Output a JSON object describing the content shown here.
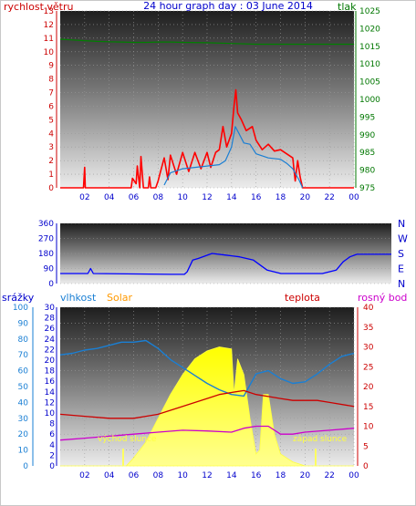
{
  "panel1": {
    "title": "24 hour graph day : 03 June 2014",
    "left_label": "rychlost větru",
    "right_label": "tlak",
    "left_ticks": [
      "0",
      "1",
      "2",
      "3",
      "4",
      "5",
      "6",
      "7",
      "8",
      "9",
      "10",
      "11",
      "12",
      "13"
    ],
    "right_ticks": [
      "975",
      "980",
      "985",
      "990",
      "995",
      "1000",
      "1005",
      "1010",
      "1015",
      "1020",
      "1025"
    ],
    "x_ticks": [
      "02",
      "04",
      "06",
      "08",
      "10",
      "12",
      "14",
      "16",
      "18",
      "20",
      "22",
      "00"
    ],
    "colors": {
      "wind": "#ff0000",
      "gust_avg": "#1a7fd4",
      "pressure": "#008000",
      "left_axis": "#cc0000",
      "right_axis": "#007700",
      "title": "#0000cc"
    }
  },
  "panel2": {
    "left_ticks": [
      "0",
      "90",
      "180",
      "270",
      "360"
    ],
    "right_letters": [
      "N",
      "W",
      "S",
      "E",
      "N"
    ],
    "colors": {
      "direction": "#0000ff",
      "axis": "#0000cc"
    }
  },
  "panel3": {
    "labels": {
      "rain": "srážky",
      "humidity": "vlhkost",
      "solar": "Solar",
      "temperature": "teplota",
      "dewpoint": "rosný bod"
    },
    "humidity_ticks": [
      "0",
      "10",
      "20",
      "30",
      "40",
      "50",
      "60",
      "70",
      "80",
      "90",
      "100"
    ],
    "rain_ticks": [
      "0",
      "2",
      "4",
      "6",
      "8",
      "10",
      "12",
      "14",
      "16",
      "18",
      "20",
      "22",
      "24",
      "26",
      "28",
      "30"
    ],
    "temp_ticks": [
      "0",
      "5",
      "10",
      "15",
      "20",
      "25",
      "30",
      "35",
      "40"
    ],
    "x_ticks": [
      "02",
      "04",
      "06",
      "08",
      "10",
      "12",
      "14",
      "16",
      "18",
      "20",
      "22",
      "00"
    ],
    "sunrise_label": "východ slunce",
    "sunset_label": "západ slunce",
    "colors": {
      "humidity": "#1a7fd4",
      "solar": "#ffff00",
      "temperature": "#cc0000",
      "dewpoint": "#cc00cc",
      "rain_axis": "#0000cc",
      "humidity_axis": "#1a7fd4",
      "solar_label": "#ff9900",
      "temp_axis": "#cc0000",
      "dew_label": "#cc00cc"
    }
  },
  "chart_data": [
    {
      "type": "line",
      "title": "24 hour graph day : 03 June 2014",
      "x_unit": "hour",
      "left_axis": {
        "label": "rychlost větru",
        "range": [
          0,
          13
        ]
      },
      "right_axis": {
        "label": "tlak",
        "range": [
          975,
          1025
        ]
      },
      "series": [
        {
          "name": "rychlost větru",
          "axis": "left",
          "points": [
            [
              0,
              0
            ],
            [
              1.9,
              0
            ],
            [
              2,
              1.5
            ],
            [
              2.05,
              0
            ],
            [
              5.8,
              0
            ],
            [
              5.9,
              0.7
            ],
            [
              6.2,
              0.3
            ],
            [
              6.3,
              1.6
            ],
            [
              6.5,
              0
            ],
            [
              6.6,
              2.3
            ],
            [
              6.8,
              0
            ],
            [
              7.2,
              0
            ],
            [
              7.3,
              0.8
            ],
            [
              7.4,
              0
            ],
            [
              7.8,
              0
            ],
            [
              8,
              0.5
            ],
            [
              8.2,
              1.2
            ],
            [
              8.5,
              2.2
            ],
            [
              8.8,
              0.6
            ],
            [
              9,
              2.4
            ],
            [
              9.5,
              1
            ],
            [
              10,
              2.6
            ],
            [
              10.5,
              1.2
            ],
            [
              11,
              2.6
            ],
            [
              11.5,
              1.4
            ],
            [
              12,
              2.6
            ],
            [
              12.3,
              1.5
            ],
            [
              12.7,
              2.6
            ],
            [
              13.0,
              2.8
            ],
            [
              13.3,
              4.5
            ],
            [
              13.6,
              3
            ],
            [
              14,
              4
            ],
            [
              14.2,
              6
            ],
            [
              14.35,
              7.2
            ],
            [
              14.5,
              5.5
            ],
            [
              14.8,
              5
            ],
            [
              15.2,
              4.2
            ],
            [
              15.7,
              4.5
            ],
            [
              16,
              3.5
            ],
            [
              16.5,
              2.8
            ],
            [
              17,
              3.2
            ],
            [
              17.5,
              2.7
            ],
            [
              18,
              2.8
            ],
            [
              18.5,
              2.5
            ],
            [
              19,
              2.2
            ],
            [
              19.2,
              0.5
            ],
            [
              19.4,
              2
            ],
            [
              19.6,
              0.8
            ],
            [
              19.8,
              0
            ],
            [
              24,
              0
            ]
          ]
        },
        {
          "name": "",
          "axis": "left",
          "points": [
            [
              8.5,
              0.2
            ],
            [
              9,
              1.1
            ],
            [
              10,
              1.4
            ],
            [
              11,
              1.5
            ],
            [
              12,
              1.6
            ],
            [
              13,
              1.7
            ],
            [
              13.5,
              2
            ],
            [
              14,
              3
            ],
            [
              14.3,
              4.5
            ],
            [
              14.6,
              4
            ],
            [
              15,
              3.3
            ],
            [
              15.5,
              3.2
            ],
            [
              16,
              2.5
            ],
            [
              17,
              2.2
            ],
            [
              18,
              2.1
            ],
            [
              18.5,
              1.8
            ],
            [
              19,
              1.4
            ],
            [
              19.5,
              0.6
            ],
            [
              19.8,
              0
            ]
          ]
        },
        {
          "name": "tlak",
          "axis": "right",
          "points": [
            [
              0,
              1017
            ],
            [
              1,
              1016.8
            ],
            [
              2,
              1016.6
            ],
            [
              3,
              1016.4
            ],
            [
              4,
              1016.3
            ],
            [
              5,
              1016.2
            ],
            [
              6,
              1016.1
            ],
            [
              7,
              1016.1
            ],
            [
              8,
              1016.2
            ],
            [
              9,
              1016.2
            ],
            [
              10,
              1016.1
            ],
            [
              12,
              1016
            ],
            [
              14,
              1015.8
            ],
            [
              16,
              1015.6
            ],
            [
              18,
              1015.6
            ],
            [
              20,
              1015.6
            ],
            [
              22,
              1015.6
            ],
            [
              24,
              1015.6
            ]
          ]
        }
      ]
    },
    {
      "type": "line",
      "x_unit": "hour",
      "y_axis": {
        "range": [
          0,
          360
        ],
        "labels": [
          "N",
          "W",
          "S",
          "E",
          "N"
        ]
      },
      "series": [
        {
          "name": "",
          "points": [
            [
              0,
              60
            ],
            [
              2,
              60
            ],
            [
              2.2,
              90
            ],
            [
              2.4,
              60
            ],
            [
              8,
              55
            ],
            [
              9,
              55
            ],
            [
              9.2,
              70
            ],
            [
              9.6,
              140
            ],
            [
              10,
              150
            ],
            [
              11,
              180
            ],
            [
              12,
              170
            ],
            [
              13,
              160
            ],
            [
              14,
              140
            ],
            [
              14.5,
              110
            ],
            [
              15,
              80
            ],
            [
              16,
              60
            ],
            [
              17,
              60
            ],
            [
              18,
              60
            ],
            [
              19,
              60
            ],
            [
              20,
              80
            ],
            [
              20.5,
              130
            ],
            [
              21,
              160
            ],
            [
              21.5,
              175
            ],
            [
              22,
              175
            ],
            [
              23,
              175
            ],
            [
              24,
              175
            ]
          ]
        }
      ]
    },
    {
      "type": "line",
      "x_unit": "hour",
      "axes": {
        "humidity": [
          0,
          100
        ],
        "rain": [
          0,
          30
        ],
        "temperature": [
          0,
          40
        ]
      },
      "series": [
        {
          "name": "vlhkost",
          "axis": "humidity",
          "points": [
            [
              0,
              70
            ],
            [
              1,
              71
            ],
            [
              2,
              73
            ],
            [
              3,
              74
            ],
            [
              4,
              76
            ],
            [
              5,
              78
            ],
            [
              6,
              78
            ],
            [
              7,
              79
            ],
            [
              8,
              74
            ],
            [
              9,
              67
            ],
            [
              10,
              62
            ],
            [
              11,
              57
            ],
            [
              12,
              52
            ],
            [
              13,
              48
            ],
            [
              14,
              45
            ],
            [
              15,
              44
            ],
            [
              16,
              58
            ],
            [
              17,
              60
            ],
            [
              18,
              55
            ],
            [
              19,
              52
            ],
            [
              20,
              53
            ],
            [
              21,
              58
            ],
            [
              22,
              64
            ],
            [
              23,
              69
            ],
            [
              24,
              71
            ]
          ]
        },
        {
          "name": "Solar",
          "axis": "temperature",
          "fill": true,
          "points": [
            [
              0,
              0
            ],
            [
              5.4,
              0
            ],
            [
              6,
              2
            ],
            [
              7,
              6
            ],
            [
              8,
              12
            ],
            [
              9,
              18
            ],
            [
              10,
              23
            ],
            [
              11,
              27
            ],
            [
              12,
              29
            ],
            [
              13,
              30
            ],
            [
              14,
              29.5
            ],
            [
              14.2,
              18
            ],
            [
              14.5,
              27
            ],
            [
              15,
              23
            ],
            [
              15.5,
              12
            ],
            [
              16,
              3
            ],
            [
              16.3,
              4
            ],
            [
              16.6,
              18
            ],
            [
              17,
              18
            ],
            [
              17.5,
              8
            ],
            [
              18,
              3
            ],
            [
              19,
              1
            ],
            [
              20,
              0
            ],
            [
              24,
              0
            ]
          ]
        },
        {
          "name": "teplota",
          "axis": "temperature",
          "points": [
            [
              0,
              13
            ],
            [
              2,
              12.5
            ],
            [
              4,
              12
            ],
            [
              6,
              12
            ],
            [
              7,
              12.5
            ],
            [
              8,
              13
            ],
            [
              10,
              15
            ],
            [
              12,
              17
            ],
            [
              13,
              18
            ],
            [
              14,
              18.5
            ],
            [
              15,
              19
            ],
            [
              16,
              18
            ],
            [
              17,
              17.5
            ],
            [
              18,
              17
            ],
            [
              19,
              16.5
            ],
            [
              20,
              16.5
            ],
            [
              21,
              16.5
            ],
            [
              22,
              16
            ],
            [
              24,
              15
            ]
          ]
        },
        {
          "name": "rosný bod",
          "axis": "temperature",
          "points": [
            [
              0,
              6.5
            ],
            [
              2,
              7
            ],
            [
              4,
              7.5
            ],
            [
              6,
              8
            ],
            [
              8,
              8.5
            ],
            [
              10,
              9
            ],
            [
              12,
              8.8
            ],
            [
              14,
              8.5
            ],
            [
              15,
              9.5
            ],
            [
              16,
              10
            ],
            [
              17,
              10
            ],
            [
              18,
              8
            ],
            [
              19,
              8
            ],
            [
              20,
              8.5
            ],
            [
              22,
              9
            ],
            [
              24,
              9.5
            ]
          ]
        }
      ]
    }
  ]
}
